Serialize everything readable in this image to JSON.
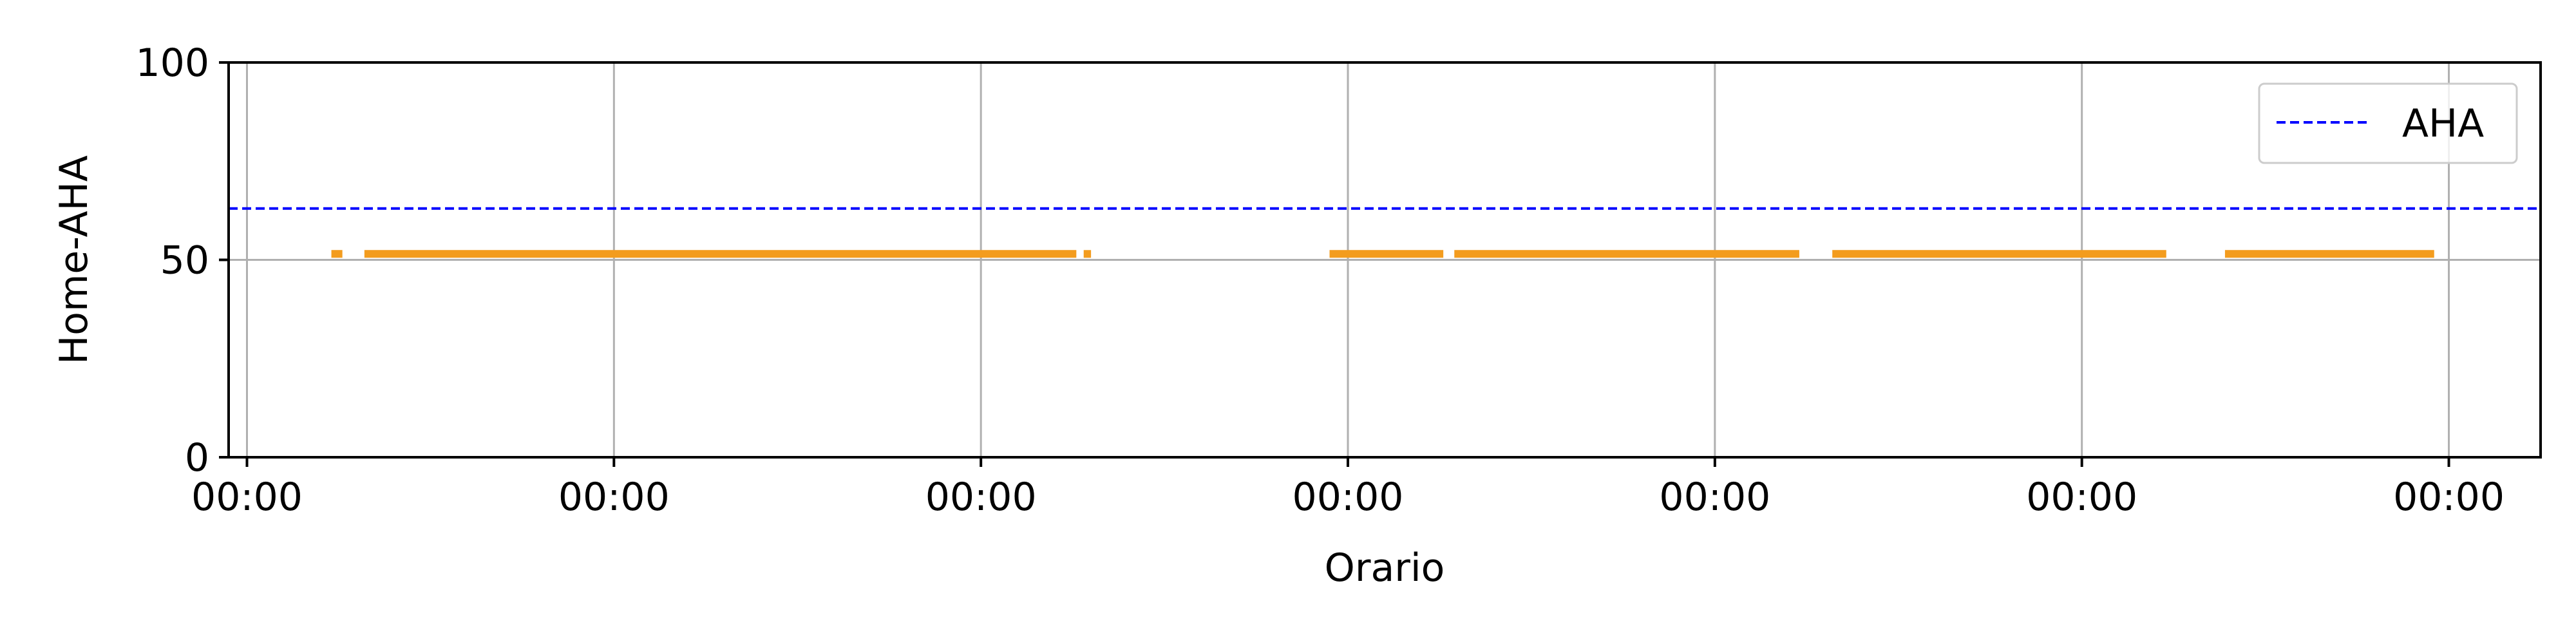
{
  "chart_data": {
    "type": "line",
    "title": "",
    "xlabel": "Orario",
    "ylabel": "Home-AHA",
    "xlim": [
      -0.05,
      6.25
    ],
    "ylim": [
      0,
      100
    ],
    "x_ticks": [
      0,
      1,
      2,
      3,
      4,
      5,
      6
    ],
    "x_tick_labels": [
      "00:00",
      "00:00",
      "00:00",
      "00:00",
      "00:00",
      "00:00",
      "00:00"
    ],
    "y_ticks": [
      0,
      50,
      100
    ],
    "y_tick_labels": [
      "0",
      "50",
      "100"
    ],
    "grid": true,
    "legend_position": "top-right",
    "series": [
      {
        "name": "",
        "style": "solid",
        "color": "#f39c1e",
        "segments": [
          {
            "x": [
              0.23,
              0.26
            ],
            "y": [
              51.5,
              51.5
            ]
          },
          {
            "x": [
              0.32,
              2.26
            ],
            "y": [
              51.5,
              51.5
            ]
          },
          {
            "x": [
              2.28,
              2.3
            ],
            "y": [
              51.5,
              51.5
            ]
          },
          {
            "x": [
              2.95,
              3.26
            ],
            "y": [
              51.5,
              51.5
            ]
          },
          {
            "x": [
              3.29,
              4.23
            ],
            "y": [
              51.5,
              51.5
            ]
          },
          {
            "x": [
              4.32,
              5.23
            ],
            "y": [
              51.5,
              51.5
            ]
          },
          {
            "x": [
              5.39,
              5.96
            ],
            "y": [
              51.5,
              51.5
            ]
          }
        ]
      },
      {
        "name": "AHA",
        "style": "dashed",
        "color": "#0000ff",
        "y": 63
      }
    ]
  }
}
